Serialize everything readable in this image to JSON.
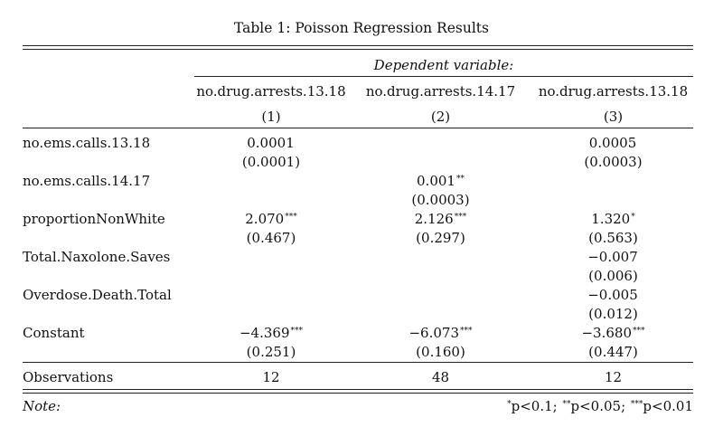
{
  "title": "Table 1: Poisson Regression Results",
  "dependent_variable_label": "Dependent variable:",
  "columns": [
    {
      "name": "no.drug.arrests.13.18",
      "number": "(1)"
    },
    {
      "name": "no.drug.arrests.14.17",
      "number": "(2)"
    },
    {
      "name": "no.drug.arrests.13.18",
      "number": "(3)"
    }
  ],
  "rows": [
    {
      "label": "no.ems.calls.13.18",
      "coef": [
        "0.0001",
        "",
        "0.0005"
      ],
      "stars": [
        "",
        "",
        ""
      ],
      "se": [
        "(0.0001)",
        "",
        "(0.0003)"
      ]
    },
    {
      "label": "no.ems.calls.14.17",
      "coef": [
        "",
        "0.001",
        ""
      ],
      "stars": [
        "",
        "**",
        ""
      ],
      "se": [
        "",
        "(0.0003)",
        ""
      ]
    },
    {
      "label": "proportionNonWhite",
      "coef": [
        "2.070",
        "2.126",
        "1.320"
      ],
      "stars": [
        "***",
        "***",
        "*"
      ],
      "se": [
        "(0.467)",
        "(0.297)",
        "(0.563)"
      ]
    },
    {
      "label": "Total.Naxolone.Saves",
      "coef": [
        "",
        "",
        "−0.007"
      ],
      "stars": [
        "",
        "",
        ""
      ],
      "se": [
        "",
        "",
        "(0.006)"
      ]
    },
    {
      "label": "Overdose.Death.Total",
      "coef": [
        "",
        "",
        "−0.005"
      ],
      "stars": [
        "",
        "",
        ""
      ],
      "se": [
        "",
        "",
        "(0.012)"
      ]
    },
    {
      "label": "Constant",
      "coef": [
        "−4.369",
        "−6.073",
        "−3.680"
      ],
      "stars": [
        "***",
        "***",
        "***"
      ],
      "se": [
        "(0.251)",
        "(0.160)",
        "(0.447)"
      ]
    }
  ],
  "observations": {
    "label": "Observations",
    "values": [
      "12",
      "48",
      "12"
    ]
  },
  "note": {
    "label": "Note:",
    "stars": [
      "*",
      "**",
      "***"
    ],
    "thresholds": [
      "p<0.1;",
      "p<0.05;",
      "p<0.01"
    ]
  }
}
